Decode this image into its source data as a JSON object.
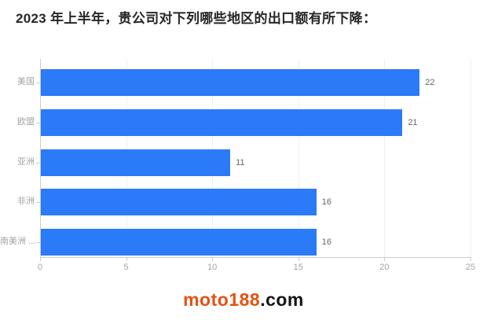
{
  "page": {
    "title": "2023 年上半年，贵公司对下列哪些地区的出口额有所下降：",
    "watermark": {
      "brand": "moto188",
      "suffix": ".com",
      "brand_color": "#e8500f",
      "suffix_color": "#141414"
    }
  },
  "chart_data": {
    "type": "bar",
    "orientation": "horizontal",
    "title": "2023 年上半年，贵公司对下列哪些地区的出口额有所下降：",
    "categories": [
      "美国",
      "欧盟",
      "亚洲",
      "非洲",
      "南美洲 ..."
    ],
    "values": [
      22,
      21,
      11,
      16,
      16
    ],
    "x_ticks": [
      0,
      5,
      10,
      15,
      20,
      25
    ],
    "xlim": [
      0,
      25
    ],
    "xlabel": "",
    "ylabel": "",
    "grid": true,
    "legend": false,
    "value_labels_shown": true,
    "bar_color": "#2b7af7",
    "value_label_color": "#666666",
    "axis_label_color": "#a3a3a3",
    "axis_line_color": "#cccccc",
    "grid_color": "#efeff1"
  }
}
